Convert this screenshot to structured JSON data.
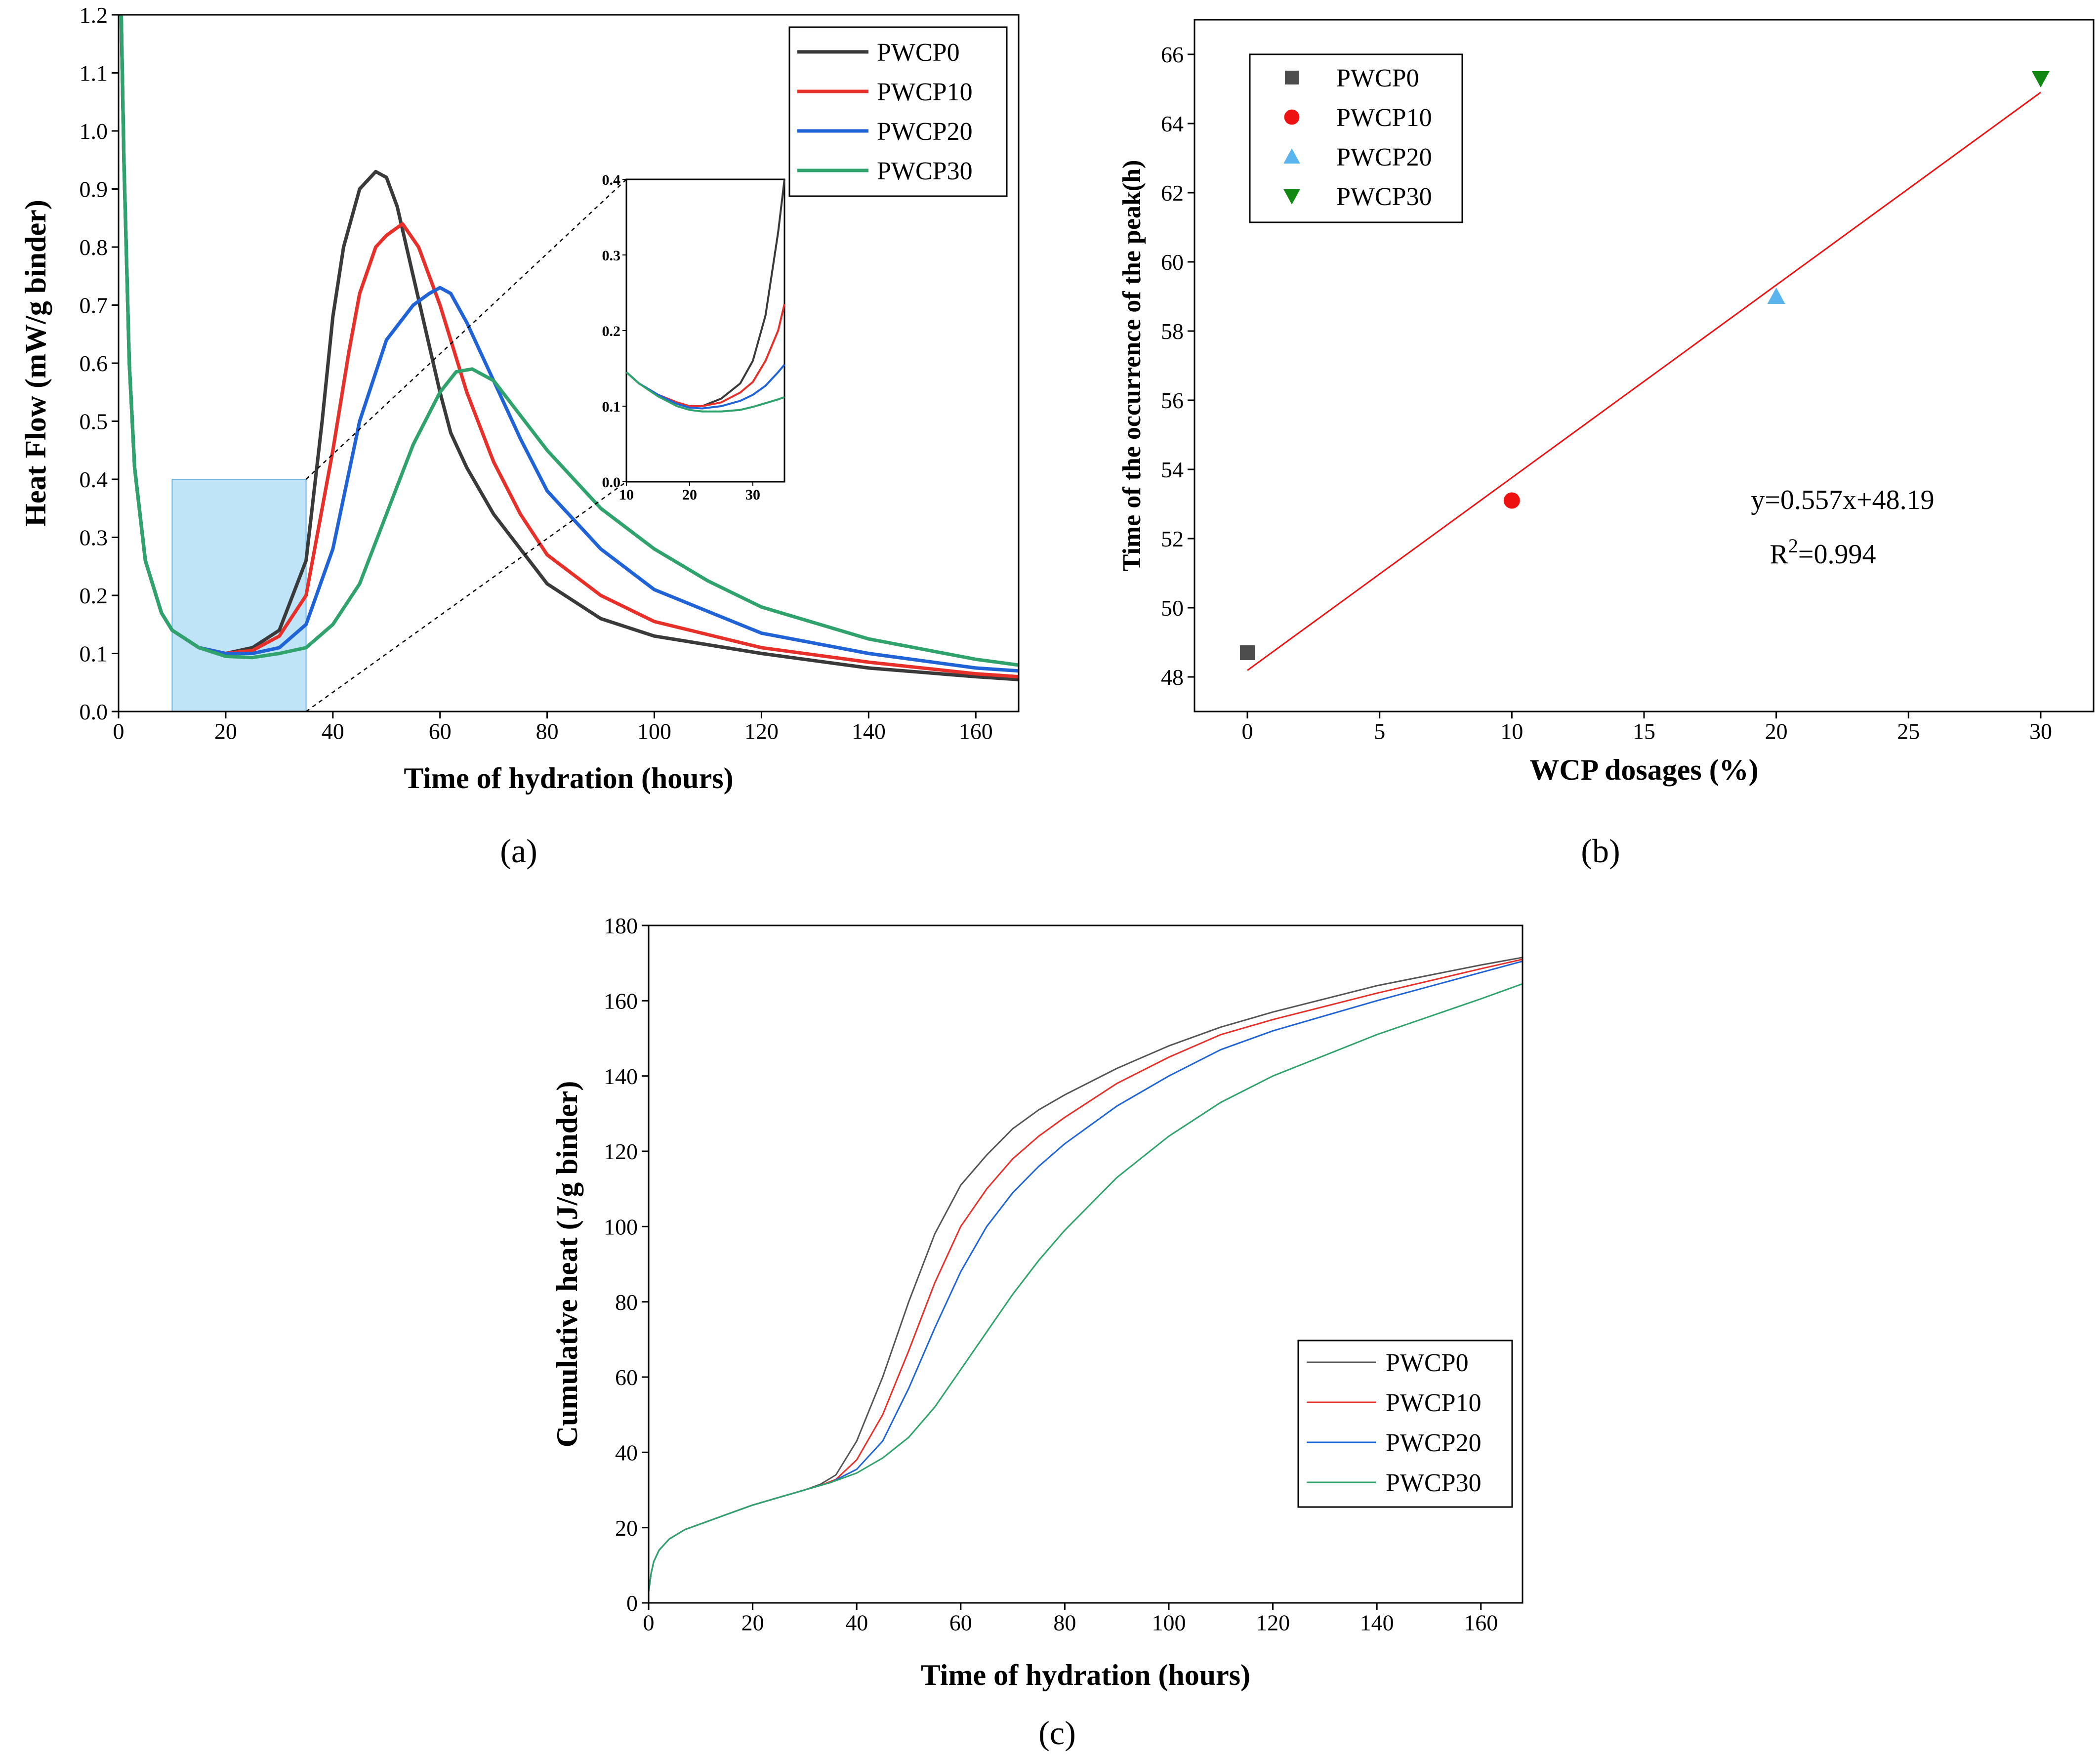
{
  "chart_data": [
    {
      "panel_label": "(a)",
      "type": "line",
      "xlabel": "Time of hydration (hours)",
      "ylabel": "Heat Flow (mW/g binder)",
      "xlim": [
        0,
        168
      ],
      "ylim": [
        0,
        1.2
      ],
      "xticks": [
        0,
        20,
        40,
        60,
        80,
        100,
        120,
        140,
        160
      ],
      "yticks": [
        0.0,
        0.1,
        0.2,
        0.3,
        0.4,
        0.5,
        0.6,
        0.7,
        0.8,
        0.9,
        1.0,
        1.1,
        1.2
      ],
      "legend_position": "top-right",
      "highlight_region": {
        "x": [
          10,
          35
        ],
        "y": [
          0,
          0.4
        ],
        "color": "#bfe4f7"
      },
      "series": [
        {
          "name": "PWCP0",
          "color": "#3a3a3a",
          "x": [
            0.5,
            1,
            2,
            3,
            5,
            8,
            10,
            15,
            20,
            25,
            30,
            35,
            38,
            40,
            42,
            45,
            48,
            50,
            52,
            55,
            58,
            60,
            62,
            65,
            70,
            75,
            80,
            90,
            100,
            120,
            140,
            160,
            168
          ],
          "y": [
            1.2,
            0.95,
            0.6,
            0.42,
            0.26,
            0.17,
            0.14,
            0.11,
            0.1,
            0.11,
            0.14,
            0.26,
            0.5,
            0.68,
            0.8,
            0.9,
            0.93,
            0.92,
            0.87,
            0.75,
            0.63,
            0.55,
            0.48,
            0.42,
            0.34,
            0.28,
            0.22,
            0.16,
            0.13,
            0.1,
            0.075,
            0.06,
            0.055
          ]
        },
        {
          "name": "PWCP10",
          "color": "#e8302a",
          "x": [
            0.5,
            1,
            2,
            3,
            5,
            8,
            10,
            15,
            20,
            25,
            30,
            35,
            40,
            43,
            45,
            48,
            50,
            53,
            56,
            60,
            65,
            70,
            75,
            80,
            90,
            100,
            120,
            140,
            160,
            168
          ],
          "y": [
            1.2,
            0.95,
            0.6,
            0.42,
            0.26,
            0.17,
            0.14,
            0.11,
            0.1,
            0.105,
            0.13,
            0.2,
            0.45,
            0.62,
            0.72,
            0.8,
            0.82,
            0.84,
            0.8,
            0.7,
            0.55,
            0.43,
            0.34,
            0.27,
            0.2,
            0.155,
            0.11,
            0.085,
            0.065,
            0.06
          ]
        },
        {
          "name": "PWCP20",
          "color": "#1f63d6",
          "x": [
            0.5,
            1,
            2,
            3,
            5,
            8,
            10,
            15,
            20,
            25,
            30,
            35,
            40,
            45,
            50,
            55,
            58,
            60,
            62,
            65,
            70,
            75,
            80,
            90,
            100,
            120,
            140,
            160,
            168
          ],
          "y": [
            1.2,
            0.95,
            0.6,
            0.42,
            0.26,
            0.17,
            0.14,
            0.11,
            0.1,
            0.1,
            0.11,
            0.15,
            0.28,
            0.5,
            0.64,
            0.7,
            0.72,
            0.73,
            0.72,
            0.67,
            0.57,
            0.47,
            0.38,
            0.28,
            0.21,
            0.135,
            0.1,
            0.075,
            0.07
          ]
        },
        {
          "name": "PWCP30",
          "color": "#2fa36b",
          "x": [
            0.5,
            1,
            2,
            3,
            5,
            8,
            10,
            15,
            20,
            25,
            30,
            35,
            40,
            45,
            50,
            55,
            60,
            63,
            66,
            70,
            75,
            80,
            90,
            100,
            110,
            120,
            140,
            160,
            168
          ],
          "y": [
            1.2,
            0.95,
            0.6,
            0.42,
            0.26,
            0.17,
            0.14,
            0.11,
            0.095,
            0.093,
            0.1,
            0.11,
            0.15,
            0.22,
            0.34,
            0.46,
            0.55,
            0.585,
            0.59,
            0.57,
            0.51,
            0.45,
            0.35,
            0.28,
            0.225,
            0.18,
            0.125,
            0.09,
            0.08
          ]
        }
      ],
      "inset": {
        "xlim": [
          10,
          35
        ],
        "ylim": [
          0,
          0.4
        ],
        "xticks": [
          10,
          20,
          30
        ],
        "yticks": [
          0.0,
          0.1,
          0.2,
          0.3,
          0.4
        ],
        "series": [
          {
            "name": "PWCP0",
            "x": [
              10,
              12,
              15,
              18,
              20,
              22,
              25,
              28,
              30,
              32,
              34,
              35
            ],
            "y": [
              0.145,
              0.13,
              0.115,
              0.105,
              0.1,
              0.1,
              0.11,
              0.13,
              0.16,
              0.22,
              0.33,
              0.4
            ]
          },
          {
            "name": "PWCP10",
            "x": [
              10,
              12,
              15,
              18,
              20,
              22,
              25,
              28,
              30,
              32,
              34,
              35
            ],
            "y": [
              0.145,
              0.13,
              0.115,
              0.105,
              0.1,
              0.1,
              0.105,
              0.118,
              0.132,
              0.16,
              0.2,
              0.235
            ]
          },
          {
            "name": "PWCP20",
            "x": [
              10,
              12,
              15,
              18,
              20,
              22,
              25,
              28,
              30,
              32,
              34,
              35
            ],
            "y": [
              0.145,
              0.13,
              0.115,
              0.103,
              0.098,
              0.097,
              0.1,
              0.107,
              0.115,
              0.127,
              0.145,
              0.155
            ]
          },
          {
            "name": "PWCP30",
            "x": [
              10,
              12,
              15,
              18,
              20,
              22,
              25,
              28,
              30,
              32,
              34,
              35
            ],
            "y": [
              0.145,
              0.13,
              0.113,
              0.1,
              0.095,
              0.093,
              0.093,
              0.095,
              0.099,
              0.104,
              0.109,
              0.112
            ]
          }
        ]
      }
    },
    {
      "panel_label": "(b)",
      "type": "scatter",
      "xlabel": "WCP dosages (%)",
      "ylabel": "Time of the occurrence of the peak(h)",
      "xlim": [
        -2,
        32
      ],
      "ylim": [
        47,
        67
      ],
      "xticks": [
        0,
        5,
        10,
        15,
        20,
        25,
        30
      ],
      "yticks": [
        48,
        50,
        52,
        54,
        56,
        58,
        60,
        62,
        64,
        66
      ],
      "legend_position": "top-left",
      "points": [
        {
          "name": "PWCP0",
          "x": 0,
          "y": 48.7,
          "marker": "square",
          "color": "#4d4d4d"
        },
        {
          "name": "PWCP10",
          "x": 10,
          "y": 53.1,
          "marker": "circle",
          "color": "#ee1111"
        },
        {
          "name": "PWCP20",
          "x": 20,
          "y": 59.0,
          "marker": "triangle-up",
          "color": "#5ab4ee"
        },
        {
          "name": "PWCP30",
          "x": 30,
          "y": 65.3,
          "marker": "triangle-down",
          "color": "#118811"
        }
      ],
      "fit": {
        "slope": 0.557,
        "intercept": 48.19,
        "x_range": [
          0,
          30
        ],
        "color": "#ee1111"
      },
      "annotation": {
        "equation": "y=0.557x+48.19",
        "r2_prefix": "R",
        "r2_sup": "2",
        "r2_value": "=0.994"
      }
    },
    {
      "panel_label": "(c)",
      "type": "line",
      "xlabel": "Time of hydration (hours)",
      "ylabel": "Cumulative heat (J/g binder)",
      "xlim": [
        0,
        168
      ],
      "ylim": [
        0,
        180
      ],
      "xticks": [
        0,
        20,
        40,
        60,
        80,
        100,
        120,
        140,
        160
      ],
      "yticks": [
        0,
        20,
        40,
        60,
        80,
        100,
        120,
        140,
        160,
        180
      ],
      "legend_position": "bottom-right",
      "series": [
        {
          "name": "PWCP0",
          "color": "#555555",
          "x": [
            0,
            0.5,
            1,
            2,
            4,
            7,
            10,
            15,
            20,
            25,
            30,
            33,
            36,
            40,
            45,
            50,
            55,
            60,
            65,
            70,
            75,
            80,
            90,
            100,
            110,
            120,
            140,
            160,
            168
          ],
          "y": [
            3,
            8,
            11,
            14,
            17,
            19.5,
            21,
            23.5,
            26,
            28,
            30,
            31.5,
            34,
            43,
            60,
            80,
            98,
            111,
            119,
            126,
            131,
            135,
            142,
            148,
            153,
            157,
            164,
            169.5,
            171.5
          ]
        },
        {
          "name": "PWCP10",
          "color": "#e8302a",
          "x": [
            0,
            0.5,
            1,
            2,
            4,
            7,
            10,
            15,
            20,
            25,
            30,
            33,
            36,
            40,
            45,
            50,
            55,
            60,
            65,
            70,
            75,
            80,
            90,
            100,
            110,
            120,
            140,
            160,
            168
          ],
          "y": [
            3,
            8,
            11,
            14,
            17,
            19.5,
            21,
            23.5,
            26,
            28,
            30,
            31.2,
            32.8,
            38,
            50,
            67,
            85,
            100,
            110,
            118,
            124,
            129,
            138,
            145,
            151,
            155,
            162,
            168.5,
            171
          ]
        },
        {
          "name": "PWCP20",
          "color": "#1f63d6",
          "x": [
            0,
            0.5,
            1,
            2,
            4,
            7,
            10,
            15,
            20,
            25,
            30,
            35,
            40,
            45,
            50,
            55,
            60,
            65,
            70,
            75,
            80,
            90,
            100,
            110,
            120,
            140,
            160,
            168
          ],
          "y": [
            3,
            8,
            11,
            14,
            17,
            19.5,
            21,
            23.5,
            26,
            28,
            30,
            32,
            35.5,
            43,
            57,
            73,
            88,
            100,
            109,
            116,
            122,
            132,
            140,
            147,
            152,
            160,
            167.5,
            170.5
          ]
        },
        {
          "name": "PWCP30",
          "color": "#2fa36b",
          "x": [
            0,
            0.5,
            1,
            2,
            4,
            7,
            10,
            15,
            20,
            25,
            30,
            35,
            40,
            45,
            50,
            55,
            60,
            65,
            70,
            75,
            80,
            90,
            100,
            110,
            120,
            140,
            160,
            168
          ],
          "y": [
            3,
            8,
            11,
            14,
            17,
            19.5,
            21,
            23.5,
            26,
            28,
            30,
            32,
            34.5,
            38.5,
            44,
            52,
            62,
            72,
            82,
            91,
            99,
            113,
            124,
            133,
            140,
            151,
            160.5,
            164.5
          ]
        }
      ]
    }
  ]
}
